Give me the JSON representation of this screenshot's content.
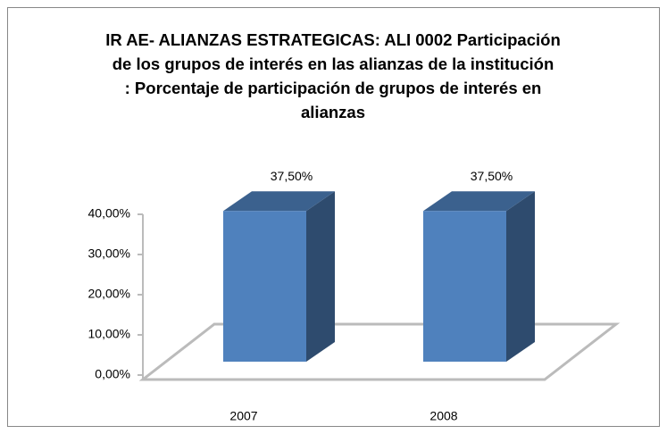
{
  "chart_data": {
    "type": "bar3d",
    "title": [
      "IR AE- ALIANZAS ESTRATEGICAS: ALI 0002  Participación",
      "de los grupos de interés en las alianzas de la institución",
      ": Porcentaje de participación de grupos de interés en",
      "alianzas"
    ],
    "categories": [
      "2007",
      "2008"
    ],
    "values": [
      37.5,
      37.5
    ],
    "value_labels": [
      "37,50%",
      "37,50%"
    ],
    "color": "#4f81bd",
    "ylim": [
      0,
      40
    ],
    "yticks": [
      {
        "value": 0,
        "label": "0,00%"
      },
      {
        "value": 10,
        "label": "10,00%"
      },
      {
        "value": 20,
        "label": "20,00%"
      },
      {
        "value": 30,
        "label": "30,00%"
      },
      {
        "value": 40,
        "label": "40,00%"
      }
    ]
  }
}
